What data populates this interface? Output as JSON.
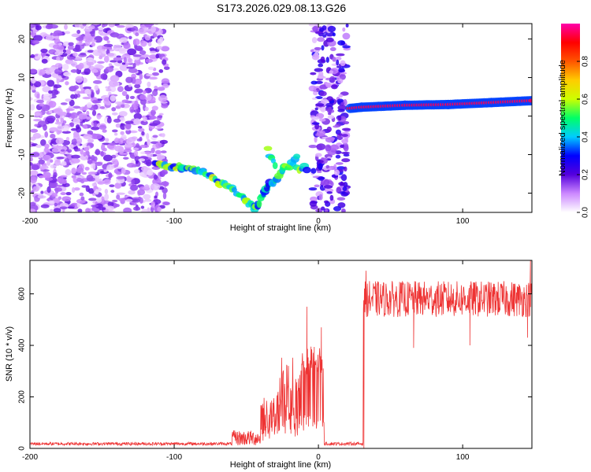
{
  "figure_title": "S173.2026.029.08.13.G26",
  "chart_data": [
    {
      "type": "heatmap",
      "title": "S173.2026.029.08.13.G26",
      "xlabel": "Height of straight line (km)",
      "ylabel": "Frequency (Hz)",
      "xlim": [
        -200,
        148
      ],
      "ylim": [
        -25,
        24
      ],
      "x_ticks": [
        "-200",
        "-100",
        "0",
        "100"
      ],
      "y_ticks": [
        "-20",
        "-10",
        "0",
        "10",
        "20"
      ],
      "colorbar": {
        "label": "Normalized spectral amplitude",
        "range": [
          0,
          1
        ],
        "ticks": [
          "0.0",
          "0.2",
          "0.4",
          "0.6",
          "0.8"
        ],
        "colors": [
          "#ffffff",
          "#cc88ff",
          "#5500dd",
          "#0000ff",
          "#00ccff",
          "#00ff66",
          "#ccff00",
          "#ffcc00",
          "#ff5500",
          "#ff0000",
          "#ff00aa"
        ]
      },
      "features": [
        {
          "name": "background noise",
          "x_range": [
            -200,
            -105
          ],
          "amplitude": 0.1
        },
        {
          "name": "falling descending track",
          "x": [
            -113,
            -95,
            -80,
            -70,
            -60,
            -50,
            -45,
            -42
          ],
          "freq": [
            -12,
            -13.5,
            -14.5,
            -17,
            -19,
            -22,
            -24,
            -23
          ]
        },
        {
          "name": "rising track",
          "x": [
            -42,
            -38,
            -35,
            -30,
            -25,
            -20,
            -15
          ],
          "freq": [
            -23,
            -20,
            -18,
            -17,
            -14,
            -13,
            -11
          ]
        },
        {
          "name": "secondary branch",
          "x": [
            -35,
            -30
          ],
          "freq": [
            -9,
            -13
          ]
        },
        {
          "name": "flat track",
          "x": [
            -15,
            -8
          ],
          "freq": [
            -13.5,
            -13.5
          ]
        },
        {
          "name": "noise burst",
          "x_range": [
            -4,
            20
          ],
          "amplitude": 0.15
        },
        {
          "name": "steady signal",
          "x": [
            22,
            30,
            60,
            90,
            120,
            148
          ],
          "freq": [
            2,
            2.3,
            2.8,
            3,
            3.5,
            4
          ],
          "amplitude": 0.95
        }
      ]
    },
    {
      "type": "line",
      "xlabel": "Height of straight line (km)",
      "ylabel": "SNR (10 * v/v)",
      "xlim": [
        -200,
        148
      ],
      "ylim": [
        0,
        730
      ],
      "x_ticks": [
        "-200",
        "-100",
        "0",
        "100"
      ],
      "y_ticks": [
        "0",
        "200",
        "400",
        "600"
      ],
      "color": "#ee3333",
      "series": [
        {
          "name": "SNR",
          "segments": [
            {
              "x_range": [
                -200,
                -60
              ],
              "mean": 18,
              "spread": 12
            },
            {
              "x_range": [
                -60,
                -40
              ],
              "mean": 40,
              "spread": 60
            },
            {
              "x_range": [
                -40,
                -28
              ],
              "mean": 130,
              "spread": 160
            },
            {
              "x_range": [
                -28,
                -12
              ],
              "mean": 230,
              "spread": 260
            },
            {
              "x_range": [
                -12,
                4
              ],
              "mean": 340,
              "spread": 120
            },
            {
              "x_range": [
                4,
                31
              ],
              "mean": 18,
              "spread": 12
            },
            {
              "x_range": [
                31,
                148
              ],
              "mean": 580,
              "spread": 140
            }
          ],
          "peaks": [
            {
              "x": -8,
              "y": 550
            },
            {
              "x": 2,
              "y": 470
            },
            {
              "x": 33,
              "y": 690
            },
            {
              "x": 147,
              "y": 730
            }
          ],
          "dips": [
            {
              "x": 31.5,
              "y": 0
            },
            {
              "x": 66,
              "y": 390
            },
            {
              "x": 105,
              "y": 400
            },
            {
              "x": 145,
              "y": 430
            }
          ]
        }
      ]
    }
  ]
}
